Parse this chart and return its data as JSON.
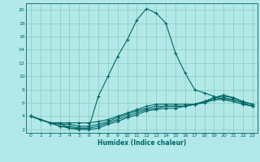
{
  "xlabel": "Humidex (Indice chaleur)",
  "ylabel": "",
  "xlim": [
    -0.5,
    23.5
  ],
  "ylim": [
    1.5,
    21.0
  ],
  "yticks": [
    2,
    4,
    6,
    8,
    10,
    12,
    14,
    16,
    18,
    20
  ],
  "xticks": [
    0,
    1,
    2,
    3,
    4,
    5,
    6,
    7,
    8,
    9,
    10,
    11,
    12,
    13,
    14,
    15,
    16,
    17,
    18,
    19,
    20,
    21,
    22,
    23
  ],
  "line_color": "#006666",
  "bg_color": "#b3e8e8",
  "grid_color": "#88ccbb",
  "line1_x": [
    0,
    1,
    2,
    3,
    4,
    5,
    6,
    7,
    8,
    9,
    10,
    11,
    12,
    13,
    14,
    15,
    16,
    17,
    18,
    19,
    20,
    21,
    22,
    23
  ],
  "line1_y": [
    4.0,
    3.5,
    3.0,
    3.0,
    2.2,
    2.2,
    2.2,
    7.0,
    10.0,
    13.0,
    15.5,
    18.5,
    20.2,
    19.5,
    18.0,
    13.5,
    10.5,
    8.0,
    7.5,
    7.0,
    6.5,
    6.2,
    5.8,
    5.5
  ],
  "line2_x": [
    0,
    2,
    3,
    4,
    5,
    6,
    7,
    8,
    9,
    10,
    11,
    12,
    13,
    14,
    15,
    16,
    17,
    18,
    19,
    20,
    21,
    22,
    23
  ],
  "line2_y": [
    4.0,
    3.0,
    3.0,
    3.0,
    3.0,
    3.0,
    3.2,
    3.5,
    4.0,
    4.5,
    5.0,
    5.5,
    5.8,
    5.8,
    5.8,
    5.8,
    5.8,
    6.0,
    6.5,
    6.5,
    6.5,
    6.0,
    5.5
  ],
  "line3_x": [
    0,
    2,
    3,
    4,
    5,
    6,
    7,
    8,
    9,
    10,
    11,
    12,
    13,
    14,
    15,
    16,
    17,
    18,
    19,
    20,
    21,
    22,
    23
  ],
  "line3_y": [
    4.0,
    3.0,
    2.8,
    2.8,
    2.5,
    2.5,
    2.8,
    3.2,
    3.8,
    4.3,
    4.8,
    5.2,
    5.5,
    5.5,
    5.5,
    5.5,
    5.8,
    6.2,
    6.8,
    7.0,
    6.8,
    6.2,
    5.8
  ],
  "line4_x": [
    0,
    2,
    3,
    4,
    5,
    6,
    7,
    8,
    9,
    10,
    11,
    12,
    13,
    14,
    15,
    16,
    17,
    18,
    19,
    20,
    21,
    22,
    23
  ],
  "line4_y": [
    4.0,
    3.0,
    2.5,
    2.5,
    2.2,
    2.2,
    2.5,
    3.0,
    3.5,
    4.0,
    4.5,
    5.0,
    5.2,
    5.5,
    5.5,
    5.5,
    5.8,
    6.2,
    6.8,
    7.2,
    6.8,
    6.2,
    5.8
  ],
  "line5_x": [
    0,
    2,
    3,
    4,
    5,
    6,
    7,
    8,
    9,
    10,
    11,
    12,
    13,
    14,
    15,
    16,
    17,
    18,
    19,
    20,
    21,
    22,
    23
  ],
  "line5_y": [
    4.0,
    3.0,
    2.5,
    2.2,
    2.0,
    2.0,
    2.2,
    2.8,
    3.2,
    3.8,
    4.2,
    4.8,
    5.0,
    5.2,
    5.2,
    5.5,
    5.8,
    6.2,
    6.5,
    6.8,
    6.5,
    6.0,
    5.5
  ]
}
